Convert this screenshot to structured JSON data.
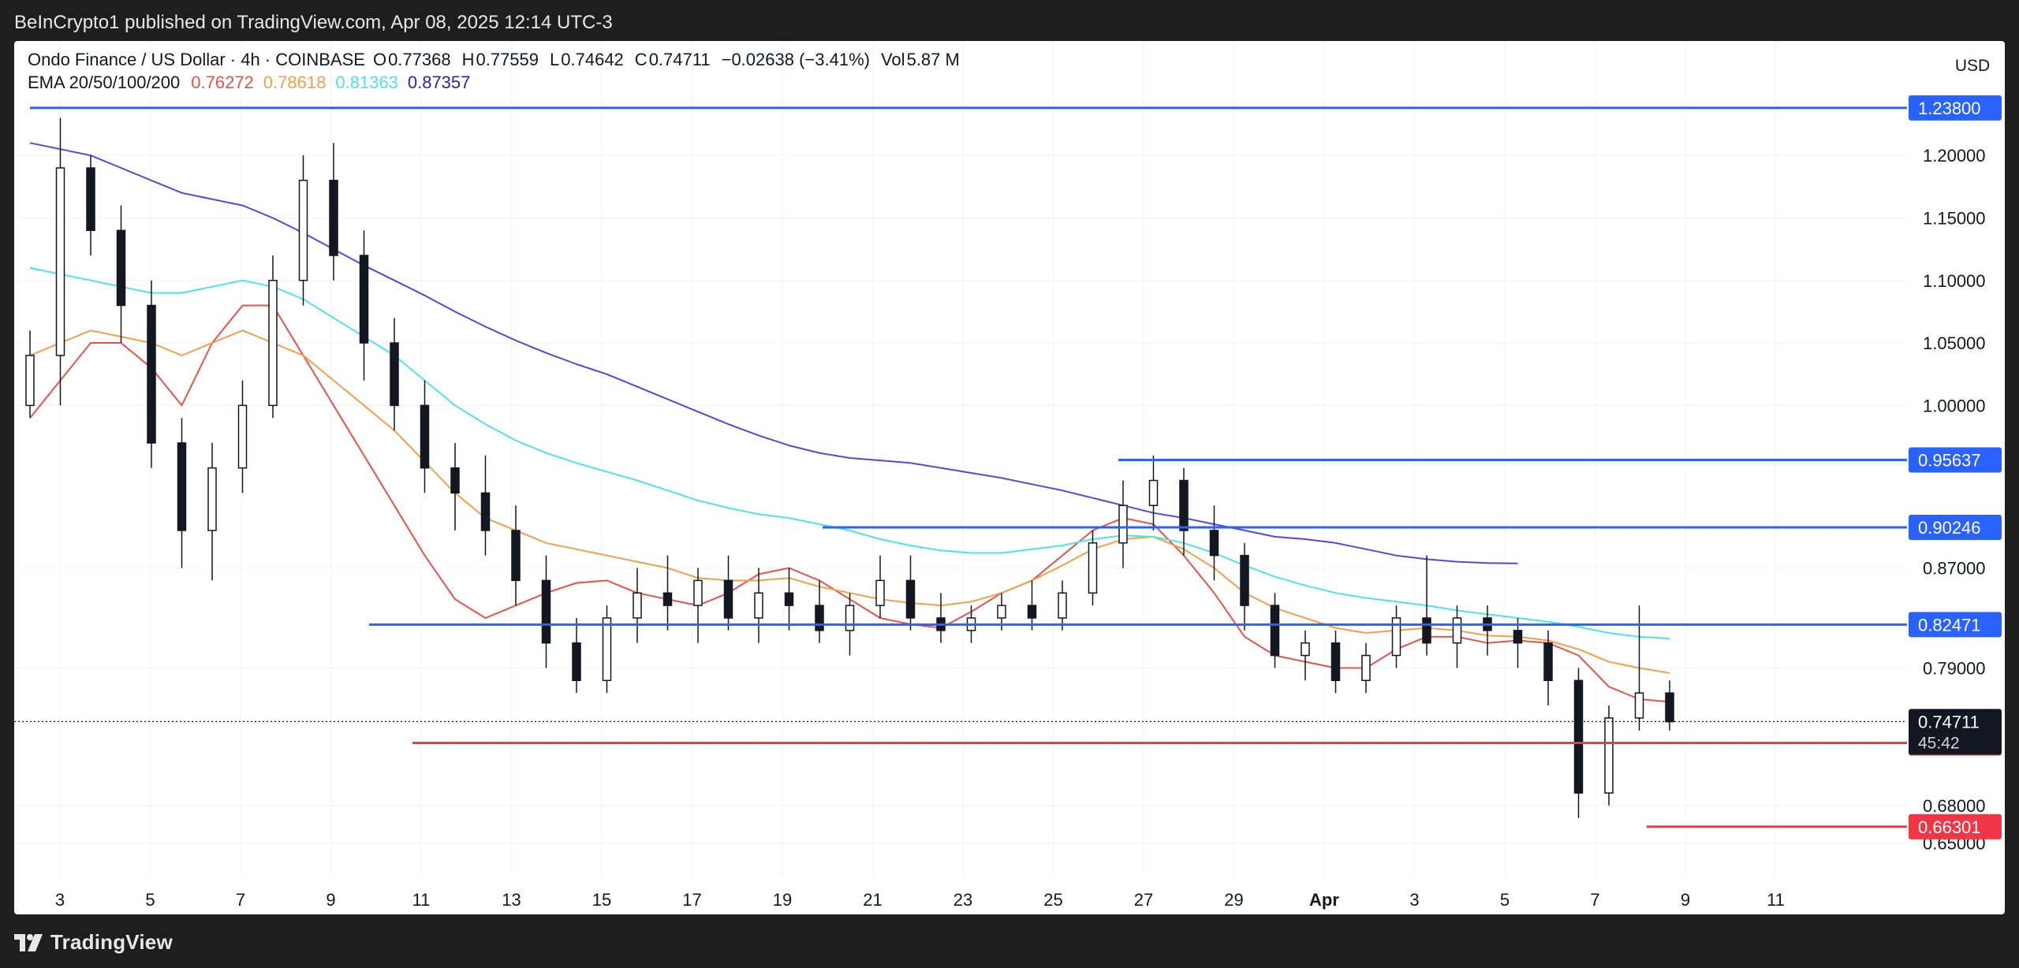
{
  "header": {
    "published_text": "BeInCrypto1 published on TradingView.com, Apr 08, 2025 12:14 UTC-3"
  },
  "legend": {
    "symbol": "Ondo Finance / US Dollar · 4h · COINBASE",
    "open_label": "O",
    "open": "0.77368",
    "high_label": "H",
    "high": "0.77559",
    "low_label": "L",
    "low": "0.74642",
    "close_label": "C",
    "close": "0.74711",
    "change": "−0.02638 (−3.41%)",
    "volume_label": "Vol",
    "volume": "5.87 M",
    "ema_label": "EMA 20/50/100/200",
    "ema20": "0.76272",
    "ema50": "0.78618",
    "ema100": "0.81363",
    "ema200": "0.87357"
  },
  "currency_button": "USD",
  "footer": {
    "brand": "TradingView"
  },
  "colors": {
    "ema20": "#e5534b",
    "ema50": "#f0a04b",
    "ema100": "#4ee3e8",
    "ema200": "#5548d9",
    "resistance": "#2962ff",
    "support": "#f23645",
    "price_label_bg": "#131722",
    "candle": "#131722"
  },
  "chart_data": {
    "type": "candlestick",
    "pair": "ONDO/USD",
    "timeframe": "4h",
    "exchange": "COINBASE",
    "xlabels": [
      "3",
      "5",
      "7",
      "9",
      "11",
      "13",
      "15",
      "17",
      "19",
      "21",
      "23",
      "25",
      "27",
      "29",
      "Apr",
      "3",
      "5",
      "7",
      "9",
      "11"
    ],
    "y_ticks": [
      "1.20000",
      "1.15000",
      "1.10000",
      "1.05000",
      "1.00000",
      "0.87000",
      "0.79000",
      "0.68000",
      "0.65000"
    ],
    "ylim": [
      0.62,
      1.26
    ],
    "current_price": "0.74711",
    "countdown": "45:42",
    "resistance_levels": [
      {
        "label": "1.23800",
        "value": 1.238
      },
      {
        "label": "0.95637",
        "value": 0.95637
      },
      {
        "label": "0.90246",
        "value": 0.90246
      },
      {
        "label": "0.82471",
        "value": 0.82471
      }
    ],
    "support_levels": [
      {
        "label": "0.73000",
        "value": 0.73
      },
      {
        "label": "0.66301",
        "value": 0.66301
      }
    ],
    "series": [
      {
        "name": "EMA 20",
        "points": [
          [
            0,
            0.99
          ],
          [
            1,
            1.02
          ],
          [
            2,
            1.05
          ],
          [
            3,
            1.05
          ],
          [
            4,
            1.03
          ],
          [
            5,
            1.0
          ],
          [
            6,
            1.05
          ],
          [
            7,
            1.08
          ],
          [
            8,
            1.08
          ],
          [
            9,
            1.04
          ],
          [
            10,
            1.0
          ],
          [
            11,
            0.96
          ],
          [
            12,
            0.92
          ],
          [
            13,
            0.88
          ],
          [
            14,
            0.845
          ],
          [
            15,
            0.83
          ],
          [
            16,
            0.84
          ],
          [
            17,
            0.85
          ],
          [
            18,
            0.858
          ],
          [
            19,
            0.86
          ],
          [
            20,
            0.85
          ],
          [
            21,
            0.845
          ],
          [
            22,
            0.84
          ],
          [
            23,
            0.85
          ],
          [
            24,
            0.865
          ],
          [
            25,
            0.87
          ],
          [
            26,
            0.86
          ],
          [
            27,
            0.845
          ],
          [
            28,
            0.83
          ],
          [
            29,
            0.825
          ],
          [
            30,
            0.822
          ],
          [
            31,
            0.835
          ],
          [
            32,
            0.85
          ],
          [
            33,
            0.86
          ],
          [
            34,
            0.88
          ],
          [
            35,
            0.9
          ],
          [
            36,
            0.91
          ],
          [
            37,
            0.905
          ],
          [
            38,
            0.88
          ],
          [
            39,
            0.85
          ],
          [
            40,
            0.815
          ],
          [
            41,
            0.8
          ],
          [
            42,
            0.795
          ],
          [
            43,
            0.79
          ],
          [
            44,
            0.79
          ],
          [
            45,
            0.805
          ],
          [
            46,
            0.815
          ],
          [
            47,
            0.815
          ],
          [
            48,
            0.81
          ],
          [
            49,
            0.812
          ],
          [
            50,
            0.81
          ],
          [
            51,
            0.8
          ],
          [
            52,
            0.775
          ],
          [
            53,
            0.765
          ],
          [
            54,
            0.763
          ]
        ]
      },
      {
        "name": "EMA 50",
        "points": [
          [
            0,
            1.04
          ],
          [
            1,
            1.05
          ],
          [
            2,
            1.06
          ],
          [
            3,
            1.055
          ],
          [
            4,
            1.05
          ],
          [
            5,
            1.04
          ],
          [
            6,
            1.05
          ],
          [
            7,
            1.06
          ],
          [
            8,
            1.05
          ],
          [
            9,
            1.04
          ],
          [
            10,
            1.02
          ],
          [
            11,
            1.0
          ],
          [
            12,
            0.98
          ],
          [
            13,
            0.955
          ],
          [
            14,
            0.93
          ],
          [
            15,
            0.91
          ],
          [
            16,
            0.9
          ],
          [
            17,
            0.89
          ],
          [
            18,
            0.885
          ],
          [
            19,
            0.88
          ],
          [
            20,
            0.875
          ],
          [
            21,
            0.87
          ],
          [
            22,
            0.862
          ],
          [
            23,
            0.86
          ],
          [
            24,
            0.86
          ],
          [
            25,
            0.862
          ],
          [
            26,
            0.855
          ],
          [
            27,
            0.85
          ],
          [
            28,
            0.845
          ],
          [
            29,
            0.842
          ],
          [
            30,
            0.84
          ],
          [
            31,
            0.843
          ],
          [
            32,
            0.85
          ],
          [
            33,
            0.86
          ],
          [
            34,
            0.872
          ],
          [
            35,
            0.885
          ],
          [
            36,
            0.893
          ],
          [
            37,
            0.895
          ],
          [
            38,
            0.885
          ],
          [
            39,
            0.87
          ],
          [
            40,
            0.85
          ],
          [
            41,
            0.838
          ],
          [
            42,
            0.83
          ],
          [
            43,
            0.822
          ],
          [
            44,
            0.818
          ],
          [
            45,
            0.82
          ],
          [
            46,
            0.822
          ],
          [
            47,
            0.82
          ],
          [
            48,
            0.816
          ],
          [
            49,
            0.815
          ],
          [
            50,
            0.812
          ],
          [
            51,
            0.805
          ],
          [
            52,
            0.795
          ],
          [
            53,
            0.79
          ],
          [
            54,
            0.786
          ]
        ]
      },
      {
        "name": "EMA 100",
        "points": [
          [
            0,
            1.11
          ],
          [
            1,
            1.105
          ],
          [
            2,
            1.1
          ],
          [
            3,
            1.095
          ],
          [
            4,
            1.09
          ],
          [
            5,
            1.09
          ],
          [
            6,
            1.095
          ],
          [
            7,
            1.1
          ],
          [
            8,
            1.095
          ],
          [
            9,
            1.085
          ],
          [
            10,
            1.07
          ],
          [
            11,
            1.055
          ],
          [
            12,
            1.04
          ],
          [
            13,
            1.02
          ],
          [
            14,
            1.0
          ],
          [
            15,
            0.985
          ],
          [
            16,
            0.972
          ],
          [
            17,
            0.962
          ],
          [
            18,
            0.954
          ],
          [
            19,
            0.947
          ],
          [
            20,
            0.94
          ],
          [
            21,
            0.932
          ],
          [
            22,
            0.924
          ],
          [
            23,
            0.918
          ],
          [
            24,
            0.913
          ],
          [
            25,
            0.91
          ],
          [
            26,
            0.905
          ],
          [
            27,
            0.9
          ],
          [
            28,
            0.893
          ],
          [
            29,
            0.888
          ],
          [
            30,
            0.884
          ],
          [
            31,
            0.882
          ],
          [
            32,
            0.882
          ],
          [
            33,
            0.885
          ],
          [
            34,
            0.888
          ],
          [
            35,
            0.893
          ],
          [
            36,
            0.896
          ],
          [
            37,
            0.895
          ],
          [
            38,
            0.89
          ],
          [
            39,
            0.882
          ],
          [
            40,
            0.872
          ],
          [
            41,
            0.863
          ],
          [
            42,
            0.856
          ],
          [
            43,
            0.85
          ],
          [
            44,
            0.846
          ],
          [
            45,
            0.843
          ],
          [
            46,
            0.84
          ],
          [
            47,
            0.836
          ],
          [
            48,
            0.833
          ],
          [
            49,
            0.83
          ],
          [
            50,
            0.827
          ],
          [
            51,
            0.823
          ],
          [
            52,
            0.818
          ],
          [
            53,
            0.815
          ],
          [
            54,
            0.8136
          ]
        ]
      },
      {
        "name": "EMA 200",
        "points": [
          [
            0,
            1.21
          ],
          [
            1,
            1.205
          ],
          [
            2,
            1.2
          ],
          [
            3,
            1.19
          ],
          [
            4,
            1.18
          ],
          [
            5,
            1.17
          ],
          [
            6,
            1.165
          ],
          [
            7,
            1.16
          ],
          [
            8,
            1.15
          ],
          [
            9,
            1.138
          ],
          [
            10,
            1.125
          ],
          [
            11,
            1.112
          ],
          [
            12,
            1.1
          ],
          [
            13,
            1.088
          ],
          [
            14,
            1.075
          ],
          [
            15,
            1.063
          ],
          [
            16,
            1.052
          ],
          [
            17,
            1.042
          ],
          [
            18,
            1.033
          ],
          [
            19,
            1.025
          ],
          [
            20,
            1.015
          ],
          [
            21,
            1.005
          ],
          [
            22,
            0.995
          ],
          [
            23,
            0.985
          ],
          [
            24,
            0.976
          ],
          [
            25,
            0.968
          ],
          [
            26,
            0.962
          ],
          [
            27,
            0.958
          ],
          [
            28,
            0.956
          ],
          [
            29,
            0.954
          ],
          [
            30,
            0.95
          ],
          [
            31,
            0.946
          ],
          [
            32,
            0.942
          ],
          [
            33,
            0.937
          ],
          [
            34,
            0.932
          ],
          [
            35,
            0.926
          ],
          [
            36,
            0.92
          ],
          [
            37,
            0.914
          ],
          [
            38,
            0.91
          ],
          [
            39,
            0.905
          ],
          [
            40,
            0.9
          ],
          [
            41,
            0.895
          ],
          [
            42,
            0.893
          ],
          [
            43,
            0.89
          ],
          [
            44,
            0.885
          ],
          [
            45,
            0.88
          ],
          [
            46,
            0.877
          ],
          [
            47,
            0.875
          ],
          [
            48,
            0.874
          ],
          [
            49,
            0.8736
          ]
        ]
      }
    ],
    "candles": [
      [
        1.0,
        1.06,
        0.99,
        1.04
      ],
      [
        1.04,
        1.23,
        1.0,
        1.19
      ],
      [
        1.19,
        1.2,
        1.12,
        1.14
      ],
      [
        1.14,
        1.16,
        1.05,
        1.08
      ],
      [
        1.08,
        1.1,
        0.95,
        0.97
      ],
      [
        0.97,
        0.99,
        0.87,
        0.9
      ],
      [
        0.9,
        0.97,
        0.86,
        0.95
      ],
      [
        0.95,
        1.02,
        0.93,
        1.0
      ],
      [
        1.0,
        1.12,
        0.99,
        1.1
      ],
      [
        1.1,
        1.2,
        1.08,
        1.18
      ],
      [
        1.18,
        1.21,
        1.1,
        1.12
      ],
      [
        1.12,
        1.14,
        1.02,
        1.05
      ],
      [
        1.05,
        1.07,
        0.98,
        1.0
      ],
      [
        1.0,
        1.02,
        0.93,
        0.95
      ],
      [
        0.95,
        0.97,
        0.9,
        0.93
      ],
      [
        0.93,
        0.96,
        0.88,
        0.9
      ],
      [
        0.9,
        0.92,
        0.84,
        0.86
      ],
      [
        0.86,
        0.88,
        0.79,
        0.81
      ],
      [
        0.81,
        0.83,
        0.77,
        0.78
      ],
      [
        0.78,
        0.84,
        0.77,
        0.83
      ],
      [
        0.83,
        0.87,
        0.81,
        0.85
      ],
      [
        0.85,
        0.88,
        0.82,
        0.84
      ],
      [
        0.84,
        0.87,
        0.81,
        0.86
      ],
      [
        0.86,
        0.88,
        0.82,
        0.83
      ],
      [
        0.83,
        0.87,
        0.81,
        0.85
      ],
      [
        0.85,
        0.87,
        0.82,
        0.84
      ],
      [
        0.84,
        0.86,
        0.81,
        0.82
      ],
      [
        0.82,
        0.85,
        0.8,
        0.84
      ],
      [
        0.84,
        0.88,
        0.83,
        0.86
      ],
      [
        0.86,
        0.88,
        0.82,
        0.83
      ],
      [
        0.83,
        0.85,
        0.81,
        0.82
      ],
      [
        0.82,
        0.84,
        0.81,
        0.83
      ],
      [
        0.83,
        0.85,
        0.82,
        0.84
      ],
      [
        0.84,
        0.86,
        0.82,
        0.83
      ],
      [
        0.83,
        0.86,
        0.82,
        0.85
      ],
      [
        0.85,
        0.9,
        0.84,
        0.89
      ],
      [
        0.89,
        0.94,
        0.87,
        0.92
      ],
      [
        0.92,
        0.96,
        0.9,
        0.94
      ],
      [
        0.94,
        0.95,
        0.88,
        0.9
      ],
      [
        0.9,
        0.92,
        0.86,
        0.88
      ],
      [
        0.88,
        0.89,
        0.82,
        0.84
      ],
      [
        0.84,
        0.85,
        0.79,
        0.8
      ],
      [
        0.8,
        0.82,
        0.78,
        0.81
      ],
      [
        0.81,
        0.82,
        0.77,
        0.78
      ],
      [
        0.78,
        0.81,
        0.77,
        0.8
      ],
      [
        0.8,
        0.84,
        0.79,
        0.83
      ],
      [
        0.83,
        0.88,
        0.8,
        0.81
      ],
      [
        0.81,
        0.84,
        0.79,
        0.83
      ],
      [
        0.83,
        0.84,
        0.8,
        0.82
      ],
      [
        0.82,
        0.83,
        0.79,
        0.81
      ],
      [
        0.81,
        0.82,
        0.76,
        0.78
      ],
      [
        0.78,
        0.79,
        0.67,
        0.69
      ],
      [
        0.69,
        0.76,
        0.68,
        0.75
      ],
      [
        0.75,
        0.84,
        0.74,
        0.77
      ],
      [
        0.77,
        0.78,
        0.74,
        0.747
      ]
    ]
  }
}
